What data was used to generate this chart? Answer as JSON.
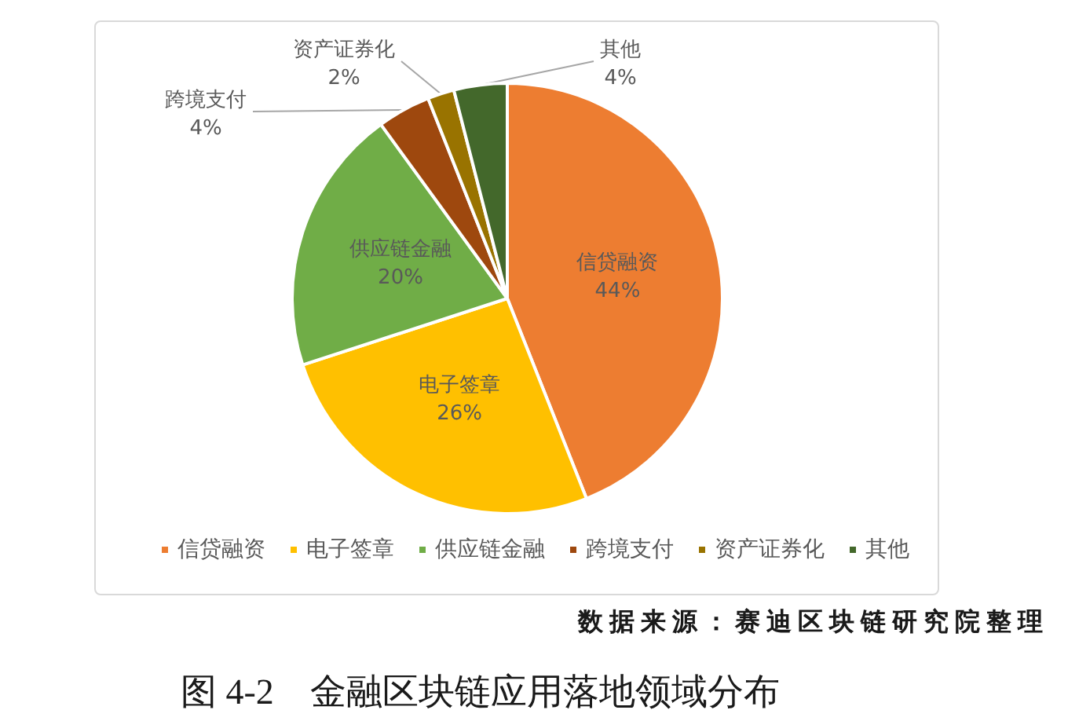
{
  "chart_data": {
    "type": "pie",
    "title": "图 4-2　金融区块链应用落地领域分布",
    "categories": [
      "信贷融资",
      "电子签章",
      "供应链金融",
      "跨境支付",
      "资产证券化",
      "其他"
    ],
    "values": [
      44,
      26,
      20,
      4,
      2,
      4
    ],
    "colors": [
      "#ed7d31",
      "#ffc000",
      "#70ad47",
      "#9e480e",
      "#997300",
      "#43682b"
    ],
    "value_labels": [
      "44%",
      "26%",
      "20%",
      "4%",
      "2%",
      "4%"
    ],
    "legend": "bottom",
    "annotations": [
      "数据来源：赛迪区块链研究院整理"
    ]
  }
}
